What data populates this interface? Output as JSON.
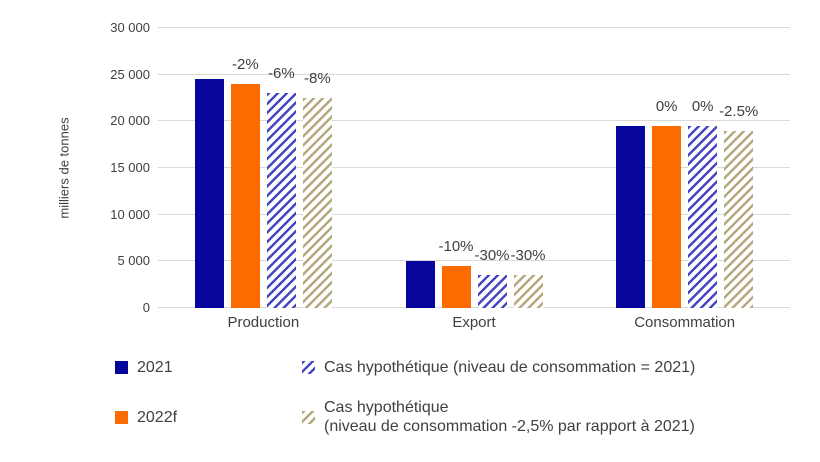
{
  "chart_data": {
    "type": "bar",
    "title": "",
    "ylabel": "milliers de tonnes",
    "categories": [
      "Production",
      "Export",
      "Consommation"
    ],
    "series": [
      {
        "name": "2021",
        "style": "solid",
        "color": "#06069C",
        "values": [
          24500,
          5000,
          19500
        ],
        "labels": [
          "",
          "",
          ""
        ]
      },
      {
        "name": "2022f",
        "style": "solid",
        "color": "#FB6B00",
        "values": [
          24000,
          4500,
          19500
        ],
        "labels": [
          "-2%",
          "-10%",
          "0%"
        ]
      },
      {
        "name": "Cas hypothétique (niveau de consommation = 2021)",
        "style": "hatch",
        "color": "#4747C4",
        "values": [
          23000,
          3500,
          19500
        ],
        "labels": [
          "-6%",
          "-30%",
          "0%"
        ]
      },
      {
        "name": "Cas hypothétique\n(niveau de consommation -2,5% par rapport à 2021)",
        "style": "hatch",
        "color": "#B5A87E",
        "values": [
          22500,
          3500,
          19000
        ],
        "labels": [
          "-8%",
          "-30%",
          "-2.5%"
        ]
      }
    ],
    "ylim": [
      0,
      30000
    ],
    "ytick_values": [
      0,
      5000,
      10000,
      15000,
      20000,
      25000,
      30000
    ],
    "ytick_labels": [
      "0",
      "5 000",
      "10 000",
      "15 000",
      "20 000",
      "25 000",
      "30 000"
    ],
    "grid": true,
    "legend_position": "bottom",
    "legend_rows": [
      [
        0,
        2
      ],
      [
        1,
        3
      ]
    ],
    "colors": {
      "gridline": "#d9d9d9",
      "text": "#404040",
      "background": "#ffffff"
    }
  }
}
